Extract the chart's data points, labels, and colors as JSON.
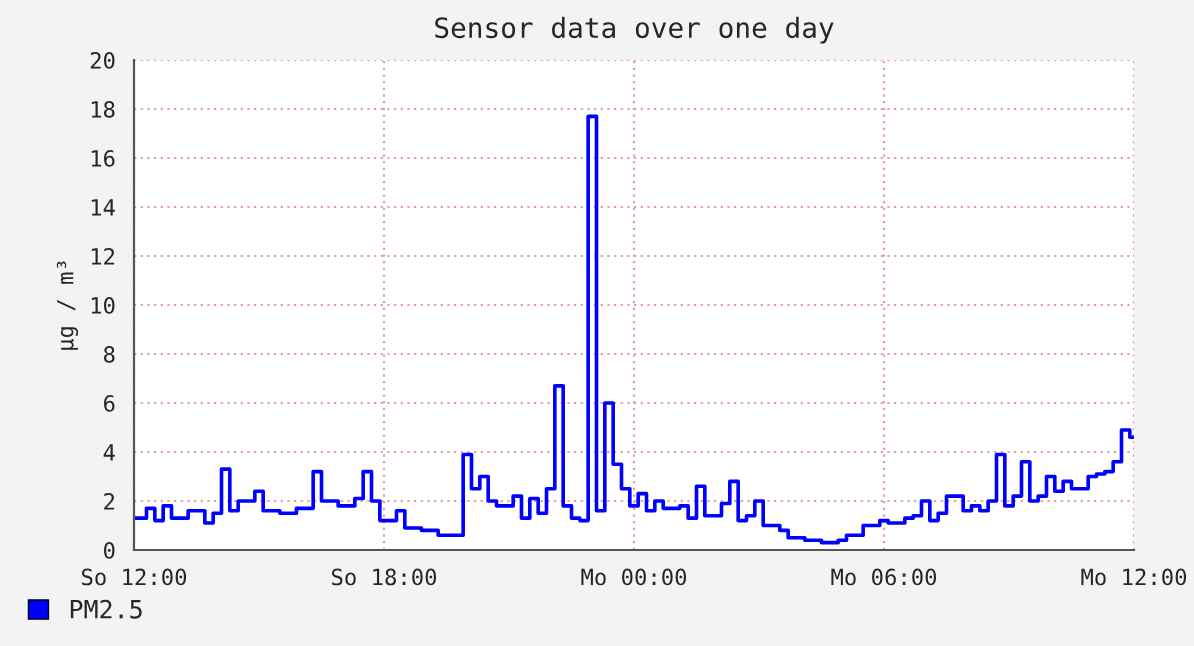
{
  "chart_data": {
    "type": "step",
    "title": "Sensor data over one day",
    "ylabel": "µg / m³",
    "ylim": [
      0,
      20
    ],
    "yticks": [
      0,
      2,
      4,
      6,
      8,
      10,
      12,
      14,
      16,
      18,
      20
    ],
    "categories": [
      "So 12:00",
      null,
      null,
      null,
      null,
      null,
      null,
      null,
      null,
      null,
      null,
      null,
      null,
      null,
      null,
      null,
      null,
      null,
      null,
      null,
      null,
      null,
      null,
      null,
      null,
      null,
      null,
      null,
      null,
      null,
      "So 18:00",
      null,
      null,
      null,
      null,
      null,
      null,
      null,
      null,
      null,
      null,
      null,
      null,
      null,
      null,
      null,
      null,
      null,
      null,
      null,
      null,
      null,
      null,
      null,
      null,
      null,
      null,
      null,
      null,
      null,
      "Mo 00:00",
      null,
      null,
      null,
      null,
      null,
      null,
      null,
      null,
      null,
      null,
      null,
      null,
      null,
      null,
      null,
      null,
      null,
      null,
      null,
      null,
      null,
      null,
      null,
      null,
      null,
      null,
      null,
      null,
      null,
      "Mo 06:00",
      null,
      null,
      null,
      null,
      null,
      null,
      null,
      null,
      null,
      null,
      null,
      null,
      null,
      null,
      null,
      null,
      null,
      null,
      null,
      null,
      null,
      null,
      null,
      null,
      null,
      null,
      null,
      null,
      null,
      "Mo 12:00"
    ],
    "grid": true,
    "legend": "bottom left",
    "series": [
      {
        "name": "PM2.5",
        "color": "#0000ff",
        "values": [
          1.3,
          1.3,
          1.7,
          1.2,
          1.8,
          1.3,
          1.3,
          1.6,
          1.6,
          1.1,
          1.5,
          3.3,
          1.6,
          2.0,
          2.0,
          2.4,
          1.6,
          1.6,
          1.5,
          1.5,
          1.7,
          1.7,
          3.2,
          2.0,
          2.0,
          1.8,
          1.8,
          2.1,
          3.2,
          2.0,
          1.2,
          1.2,
          1.6,
          0.9,
          0.9,
          0.8,
          0.8,
          0.6,
          0.6,
          0.6,
          3.9,
          2.5,
          3.0,
          2.0,
          1.8,
          1.8,
          2.2,
          1.3,
          2.1,
          1.5,
          2.5,
          6.7,
          1.8,
          1.3,
          1.2,
          17.7,
          1.6,
          6.0,
          3.5,
          2.5,
          1.8,
          2.3,
          1.6,
          2.0,
          1.7,
          1.7,
          1.8,
          1.3,
          2.6,
          1.4,
          1.4,
          1.9,
          2.8,
          1.2,
          1.4,
          2.0,
          1.0,
          1.0,
          0.8,
          0.5,
          0.5,
          0.4,
          0.4,
          0.3,
          0.3,
          0.4,
          0.6,
          0.6,
          1.0,
          1.0,
          1.2,
          1.1,
          1.1,
          1.3,
          1.4,
          2.0,
          1.2,
          1.5,
          2.2,
          2.2,
          1.6,
          1.8,
          1.6,
          2.0,
          3.9,
          1.8,
          2.2,
          3.6,
          2.0,
          2.2,
          3.0,
          2.4,
          2.8,
          2.5,
          2.5,
          3.0,
          3.1,
          3.2,
          3.6,
          4.9,
          4.6
        ]
      }
    ]
  }
}
